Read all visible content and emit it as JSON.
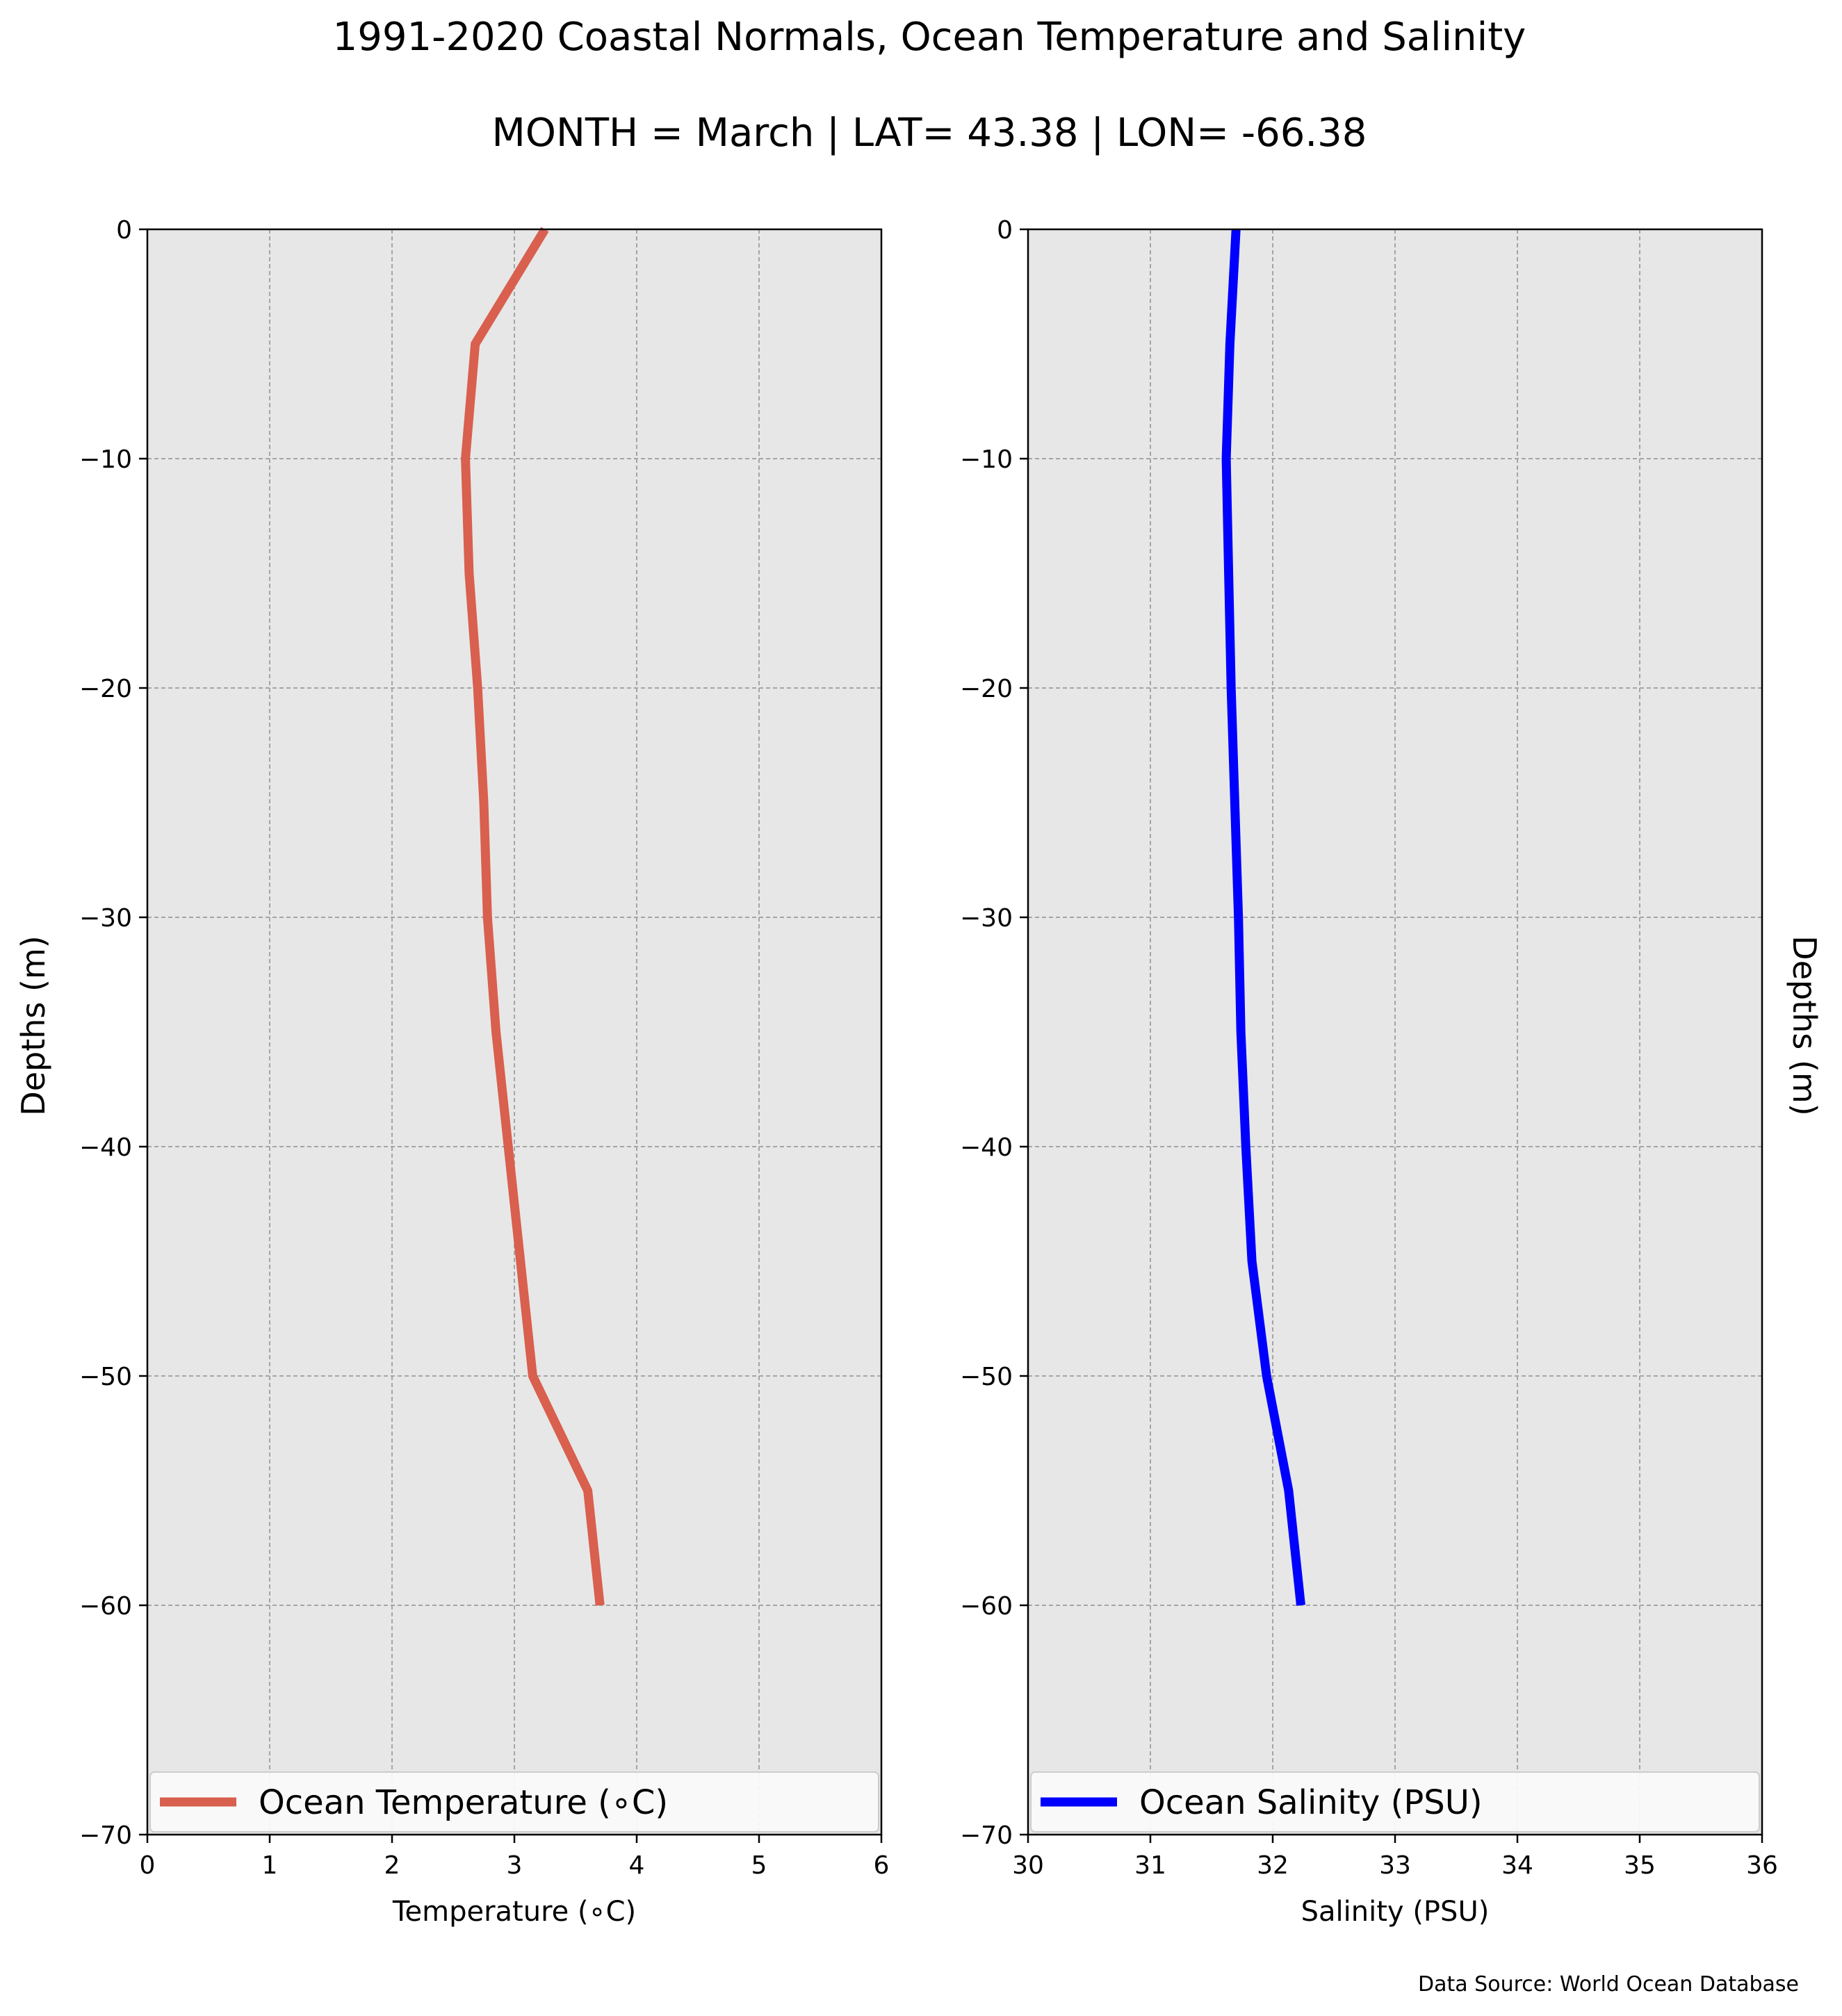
{
  "figure": {
    "title_line1": "1991-2020 Coastal Normals, Ocean Temperature and Salinity",
    "title_line2": "MONTH = March | LAT= 43.38 | LON= -66.38",
    "source": "Data Source: World Ocean Database",
    "plot_background": "#e7e7e7",
    "grid_color": "#a5a5a5"
  },
  "chart_data": [
    {
      "type": "line",
      "xlabel": "Temperature (∘C)",
      "ylabel": "Depths (m)",
      "xlim": [
        0,
        6
      ],
      "ylim": [
        -70,
        0
      ],
      "xticks": [
        0,
        1,
        2,
        3,
        4,
        5,
        6
      ],
      "yticks": [
        0,
        -10,
        -20,
        -30,
        -40,
        -50,
        -60,
        -70
      ],
      "grid": true,
      "legend_position": "bottom",
      "series": [
        {
          "name": "Ocean Temperature (∘C)",
          "color": "#d95f4e",
          "x": [
            3.25,
            2.68,
            2.6,
            2.63,
            2.7,
            2.75,
            2.78,
            2.85,
            2.95,
            3.05,
            3.15,
            3.6,
            3.7
          ],
          "y": [
            0,
            -5,
            -10,
            -15,
            -20,
            -25,
            -30,
            -35,
            -40,
            -45,
            -50,
            -55,
            -60
          ]
        }
      ]
    },
    {
      "type": "line",
      "xlabel": "Salinity (PSU)",
      "ylabel": "Depths (m)",
      "xlim": [
        30,
        36
      ],
      "ylim": [
        -70,
        0
      ],
      "xticks": [
        30,
        31,
        32,
        33,
        34,
        35,
        36
      ],
      "yticks": [
        0,
        -10,
        -20,
        -30,
        -40,
        -50,
        -60,
        -70
      ],
      "grid": true,
      "legend_position": "bottom",
      "series": [
        {
          "name": "Ocean Salinity (PSU)",
          "color": "#0000ff",
          "x": [
            31.7,
            31.65,
            31.62,
            31.64,
            31.66,
            31.69,
            31.72,
            31.74,
            31.78,
            31.83,
            31.95,
            32.13,
            32.23
          ],
          "y": [
            0,
            -5,
            -10,
            -15,
            -20,
            -25,
            -30,
            -35,
            -40,
            -45,
            -50,
            -55,
            -60
          ]
        }
      ]
    }
  ]
}
